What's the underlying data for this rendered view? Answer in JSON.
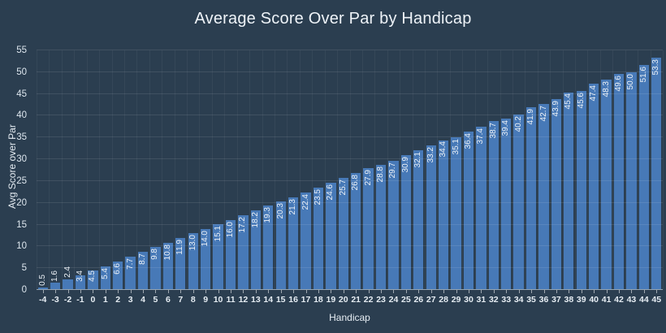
{
  "title": "Average Score Over Par by Handicap",
  "chart_data": {
    "type": "bar",
    "title": "Average Score Over Par by Handicap",
    "xlabel": "Handicap",
    "ylabel": "Avg Score over Par",
    "x": [
      -4,
      -3,
      -2,
      -1,
      0,
      1,
      2,
      3,
      4,
      5,
      6,
      7,
      8,
      9,
      10,
      11,
      12,
      13,
      14,
      15,
      16,
      17,
      18,
      19,
      20,
      21,
      22,
      23,
      24,
      25,
      26,
      27,
      28,
      29,
      30,
      31,
      32,
      33,
      34,
      35,
      36,
      37,
      38,
      39,
      40,
      41,
      42,
      43,
      44,
      45
    ],
    "values": [
      0.5,
      1.6,
      2.4,
      3.4,
      4.5,
      5.4,
      6.6,
      7.7,
      8.7,
      9.8,
      10.8,
      11.9,
      13.0,
      14.0,
      15.1,
      16.0,
      17.2,
      18.2,
      19.3,
      20.3,
      21.3,
      22.4,
      23.5,
      24.6,
      25.7,
      26.8,
      27.9,
      28.8,
      29.7,
      30.9,
      32.1,
      33.2,
      34.4,
      35.1,
      36.4,
      37.4,
      38.7,
      39.4,
      40.2,
      41.9,
      42.7,
      43.9,
      45.4,
      45.6,
      47.4,
      48.3,
      49.6,
      50.0,
      51.6,
      53.3
    ],
    "yticks": [
      0,
      5,
      10,
      15,
      20,
      25,
      30,
      35,
      40,
      45,
      50,
      55
    ],
    "ylim": [
      0,
      56.7
    ],
    "bar_value_labels": true,
    "grid": true,
    "legend": "none"
  },
  "colors": {
    "background": "#2b3e50",
    "bar": "#4779b7",
    "title_text": "#eef3f8",
    "tick_text": "#e6edf3",
    "bar_label_text": "#edf2f7",
    "gridline": "rgba(255,255,255,0.10)",
    "axis_line": "#93a4b3"
  }
}
